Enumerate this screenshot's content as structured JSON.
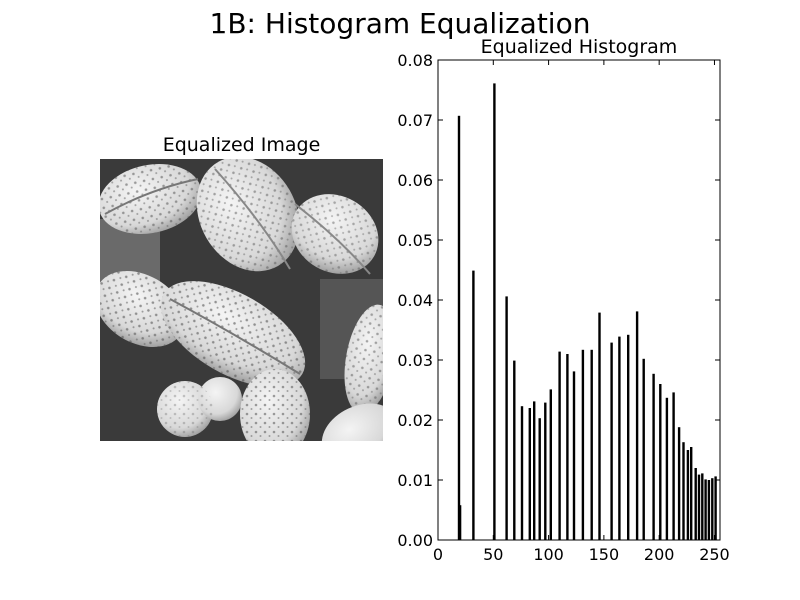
{
  "figure": {
    "suptitle": "1B: Histogram Equalization"
  },
  "image_panel": {
    "title": "Equalized Image"
  },
  "chart_data": {
    "type": "bar",
    "title": "Equalized Histogram",
    "xlabel": "",
    "ylabel": "",
    "xlim": [
      0,
      255
    ],
    "ylim": [
      0,
      0.08
    ],
    "xticks": [
      0,
      50,
      100,
      150,
      200,
      250
    ],
    "yticks": [
      0.0,
      0.01,
      0.02,
      0.03,
      0.04,
      0.05,
      0.06,
      0.07,
      0.08
    ],
    "grid": false,
    "bar_color": "#000000",
    "bars": [
      {
        "x": 19,
        "y": 0.0707
      },
      {
        "x": 20,
        "y": 0.0058
      },
      {
        "x": 32,
        "y": 0.0449
      },
      {
        "x": 51,
        "y": 0.0761
      },
      {
        "x": 62,
        "y": 0.0406
      },
      {
        "x": 69,
        "y": 0.0299
      },
      {
        "x": 76,
        "y": 0.0223
      },
      {
        "x": 83,
        "y": 0.022
      },
      {
        "x": 87,
        "y": 0.0231
      },
      {
        "x": 92,
        "y": 0.0203
      },
      {
        "x": 97,
        "y": 0.0229
      },
      {
        "x": 102,
        "y": 0.0251
      },
      {
        "x": 110,
        "y": 0.0314
      },
      {
        "x": 117,
        "y": 0.031
      },
      {
        "x": 123,
        "y": 0.0281
      },
      {
        "x": 131,
        "y": 0.0317
      },
      {
        "x": 139,
        "y": 0.0317
      },
      {
        "x": 146,
        "y": 0.0379
      },
      {
        "x": 157,
        "y": 0.0329
      },
      {
        "x": 164,
        "y": 0.0339
      },
      {
        "x": 172,
        "y": 0.0342
      },
      {
        "x": 180,
        "y": 0.0381
      },
      {
        "x": 186,
        "y": 0.0302
      },
      {
        "x": 195,
        "y": 0.0277
      },
      {
        "x": 201,
        "y": 0.026
      },
      {
        "x": 207,
        "y": 0.0237
      },
      {
        "x": 213,
        "y": 0.0246
      },
      {
        "x": 218,
        "y": 0.0188
      },
      {
        "x": 222,
        "y": 0.0163
      },
      {
        "x": 226,
        "y": 0.015
      },
      {
        "x": 229,
        "y": 0.0155
      },
      {
        "x": 233,
        "y": 0.012
      },
      {
        "x": 236,
        "y": 0.0109
      },
      {
        "x": 239,
        "y": 0.0111
      },
      {
        "x": 242,
        "y": 0.0101
      },
      {
        "x": 245,
        "y": 0.01
      },
      {
        "x": 248,
        "y": 0.0103
      },
      {
        "x": 251,
        "y": 0.0106
      }
    ]
  }
}
